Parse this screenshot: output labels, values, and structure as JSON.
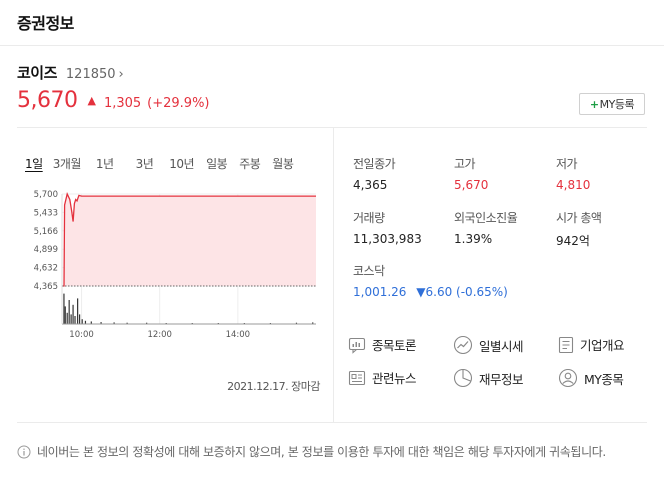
{
  "header": {
    "title": "증권정보"
  },
  "stock": {
    "name": "코이즈",
    "code": "121850",
    "chevron": "›",
    "price": "5,670",
    "direction": "▲",
    "change": "1,305",
    "change_pct": "(+29.9%)",
    "my_button": {
      "plus": "+",
      "label": "MY등록"
    }
  },
  "tabs": [
    {
      "label": "1일",
      "active": true
    },
    {
      "label": "3개월"
    },
    {
      "label": "1년"
    },
    {
      "label": "3년"
    },
    {
      "label": "10년"
    },
    {
      "label": "일봉"
    },
    {
      "label": "주봉"
    },
    {
      "label": "월봉"
    }
  ],
  "chart_data": {
    "type": "area",
    "y_ticks": [
      "5,700",
      "5,433",
      "5,166",
      "4,899",
      "4,632",
      "4,365"
    ],
    "x_ticks": [
      "10:00",
      "12:00",
      "14:00"
    ],
    "ylim": [
      4365,
      5700
    ],
    "xlim": [
      0,
      390
    ],
    "series": [
      {
        "points": [
          [
            0,
            4365
          ],
          [
            3,
            4365
          ],
          [
            4,
            5540
          ],
          [
            8,
            5700
          ],
          [
            12,
            5620
          ],
          [
            15,
            5440
          ],
          [
            17,
            5300
          ],
          [
            19,
            5560
          ],
          [
            21,
            5620
          ],
          [
            23,
            5600
          ],
          [
            26,
            5680
          ],
          [
            30,
            5670
          ],
          [
            60,
            5670
          ],
          [
            120,
            5670
          ],
          [
            180,
            5670
          ],
          [
            240,
            5670
          ],
          [
            300,
            5670
          ],
          [
            360,
            5670
          ],
          [
            390,
            5670
          ]
        ]
      }
    ],
    "previous_close": 4365,
    "volume": [
      [
        3,
        0.95
      ],
      [
        5,
        0.55
      ],
      [
        8,
        0.35
      ],
      [
        11,
        0.75
      ],
      [
        14,
        0.3
      ],
      [
        17,
        0.6
      ],
      [
        20,
        0.25
      ],
      [
        24,
        0.8
      ],
      [
        27,
        0.3
      ],
      [
        31,
        0.15
      ],
      [
        36,
        0.1
      ],
      [
        45,
        0.08
      ],
      [
        60,
        0.06
      ],
      [
        80,
        0.05
      ],
      [
        100,
        0.04
      ],
      [
        130,
        0.04
      ],
      [
        160,
        0.03
      ],
      [
        200,
        0.03
      ],
      [
        240,
        0.03
      ],
      [
        280,
        0.03
      ],
      [
        320,
        0.03
      ],
      [
        360,
        0.04
      ],
      [
        385,
        0.05
      ]
    ]
  },
  "chart_date": "2021.12.17. 장마감",
  "info": {
    "prev_close": {
      "label": "전일종가",
      "value": "4,365"
    },
    "high": {
      "label": "고가",
      "value": "5,670"
    },
    "low": {
      "label": "저가",
      "value": "4,810"
    },
    "volume": {
      "label": "거래량",
      "value": "11,303,983"
    },
    "foreign": {
      "label": "외국인소진율",
      "value": "1.39%"
    },
    "mcap": {
      "label": "시가 총액",
      "value": "942억"
    },
    "index": {
      "label": "코스닥",
      "value": "1,001.26",
      "change": "▼6.60",
      "change_pct": "(-0.65%)"
    }
  },
  "links": [
    {
      "label": "종목토론",
      "icon": "chat-icon"
    },
    {
      "label": "일별시세",
      "icon": "trend-icon"
    },
    {
      "label": "기업개요",
      "icon": "document-icon"
    },
    {
      "label": "관련뉴스",
      "icon": "news-icon"
    },
    {
      "label": "재무정보",
      "icon": "pie-chart-icon"
    },
    {
      "label": "MY종목",
      "icon": "user-icon"
    }
  ],
  "disclaimer": "네이버는 본 정보의 정확성에 대해 보증하지 않으며, 본 정보를 이용한 투자에 대한 책임은 해당 투자자에게 귀속됩니다."
}
